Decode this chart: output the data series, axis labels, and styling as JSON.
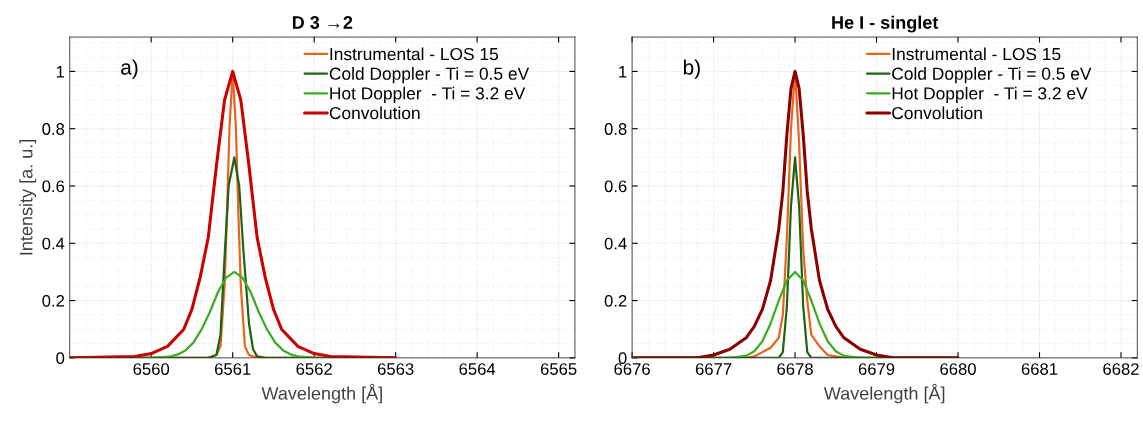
{
  "chart_data": [
    {
      "type": "line",
      "title": "D 3 →2",
      "xlabel": "Wavelength [Å]",
      "ylabel": "Intensity [a. u.]",
      "annotations": [
        "a)"
      ],
      "xlim": [
        6559,
        6565.2
      ],
      "xticks": [
        6560,
        6561,
        6562,
        6563,
        6564,
        6565
      ],
      "ylim": [
        0,
        1.12
      ],
      "yticks": [
        0,
        0.2,
        0.4,
        0.6,
        0.8,
        1
      ],
      "grid": true,
      "legend": "top right",
      "series": [
        {
          "name": "Instrumental - LOS 15",
          "color": "#e8651e",
          "x": [
            6559,
            6560.7,
            6560.8,
            6560.85,
            6560.9,
            6560.93,
            6560.96,
            6561.0,
            6561.04,
            6561.07,
            6561.1,
            6561.15,
            6561.2,
            6561.3,
            6563
          ],
          "values": [
            0,
            0,
            0.01,
            0.04,
            0.25,
            0.5,
            0.8,
            1,
            0.8,
            0.5,
            0.25,
            0.04,
            0.01,
            0,
            0
          ]
        },
        {
          "name": "Cold Doppler - Ti = 0.5 eV",
          "color": "#1e6414",
          "x": [
            6559,
            6560.7,
            6560.8,
            6560.85,
            6560.9,
            6560.95,
            6561.02,
            6561.08,
            6561.13,
            6561.2,
            6561.25,
            6561.3,
            6561.4,
            6563
          ],
          "values": [
            0,
            0,
            0.01,
            0.08,
            0.35,
            0.6,
            0.7,
            0.6,
            0.38,
            0.12,
            0.03,
            0.005,
            0,
            0
          ]
        },
        {
          "name": "Hot Doppler  - Ti = 3.2 eV",
          "color": "#3cac22",
          "x": [
            6559,
            6560.02,
            6560.22,
            6560.32,
            6560.42,
            6560.52,
            6560.62,
            6560.72,
            6560.82,
            6560.92,
            6561.02,
            6561.12,
            6561.22,
            6561.32,
            6561.42,
            6561.52,
            6561.62,
            6561.72,
            6561.82,
            6562.02,
            6563
          ],
          "values": [
            0,
            0,
            0.004,
            0.011,
            0.026,
            0.054,
            0.1,
            0.16,
            0.23,
            0.28,
            0.3,
            0.28,
            0.23,
            0.16,
            0.1,
            0.054,
            0.026,
            0.011,
            0.004,
            0,
            0
          ]
        },
        {
          "name": "Convolution",
          "color": "#cc0000",
          "x": [
            6559,
            6559.8,
            6560.0,
            6560.2,
            6560.4,
            6560.5,
            6560.6,
            6560.7,
            6560.8,
            6560.9,
            6561.0,
            6561.1,
            6561.2,
            6561.3,
            6561.4,
            6561.5,
            6561.6,
            6561.8,
            6562.0,
            6562.2,
            6563
          ],
          "values": [
            0,
            0.005,
            0.015,
            0.04,
            0.1,
            0.17,
            0.28,
            0.42,
            0.67,
            0.9,
            1,
            0.9,
            0.67,
            0.42,
            0.28,
            0.17,
            0.1,
            0.04,
            0.015,
            0.005,
            0
          ]
        }
      ]
    },
    {
      "type": "line",
      "title": "He I - singlet",
      "xlabel": "Wavelength [Å]",
      "annotations": [
        "b)"
      ],
      "xlim": [
        6676,
        6682.2
      ],
      "xticks": [
        6676,
        6677,
        6678,
        6679,
        6680,
        6681,
        6682
      ],
      "ylim": [
        0,
        1.12
      ],
      "yticks": [
        0,
        0.2,
        0.4,
        0.6,
        0.8,
        1
      ],
      "grid": true,
      "legend": "top right",
      "series": [
        {
          "name": "Instrumental - LOS 15",
          "color": "#e8651e",
          "x": [
            6676,
            6677.4,
            6677.5,
            6677.6,
            6677.7,
            6677.8,
            6677.85,
            6677.9,
            6677.95,
            6678.0,
            6678.05,
            6678.1,
            6678.15,
            6678.2,
            6678.3,
            6678.4,
            6678.5,
            6678.6,
            6680
          ],
          "values": [
            0,
            0,
            0.005,
            0.02,
            0.035,
            0.07,
            0.15,
            0.42,
            0.8,
            1,
            0.75,
            0.38,
            0.2,
            0.08,
            0.04,
            0.01,
            0.005,
            0,
            0
          ]
        },
        {
          "name": "Cold Doppler - Ti = 0.5 eV",
          "color": "#1e6414",
          "x": [
            6676,
            6677.8,
            6677.85,
            6677.9,
            6677.95,
            6678.0,
            6678.05,
            6678.1,
            6678.15,
            6678.2,
            6680
          ],
          "values": [
            0,
            0,
            0.02,
            0.18,
            0.53,
            0.7,
            0.53,
            0.18,
            0.02,
            0,
            0
          ]
        },
        {
          "name": "Hot Doppler  - Ti = 3.2 eV",
          "color": "#3cac22",
          "x": [
            6676,
            6677.2,
            6677.4,
            6677.5,
            6677.6,
            6677.7,
            6677.8,
            6677.9,
            6678.0,
            6678.1,
            6678.2,
            6678.3,
            6678.4,
            6678.5,
            6678.6,
            6678.8,
            6680
          ],
          "values": [
            0,
            0,
            0.007,
            0.023,
            0.058,
            0.12,
            0.2,
            0.27,
            0.3,
            0.27,
            0.2,
            0.12,
            0.058,
            0.023,
            0.007,
            0,
            0
          ]
        },
        {
          "name": "Convolution",
          "color": "#8b0000",
          "x": [
            6676,
            6676.8,
            6677.0,
            6677.2,
            6677.4,
            6677.5,
            6677.6,
            6677.7,
            6677.8,
            6677.85,
            6677.9,
            6677.95,
            6678.0,
            6678.05,
            6678.1,
            6678.15,
            6678.2,
            6678.3,
            6678.4,
            6678.5,
            6678.6,
            6678.8,
            6679.0,
            6679.2,
            6680
          ],
          "values": [
            0,
            0,
            0.01,
            0.03,
            0.07,
            0.11,
            0.17,
            0.27,
            0.45,
            0.58,
            0.78,
            0.94,
            1,
            0.94,
            0.78,
            0.58,
            0.45,
            0.27,
            0.17,
            0.11,
            0.07,
            0.03,
            0.01,
            0,
            0
          ]
        }
      ]
    }
  ]
}
